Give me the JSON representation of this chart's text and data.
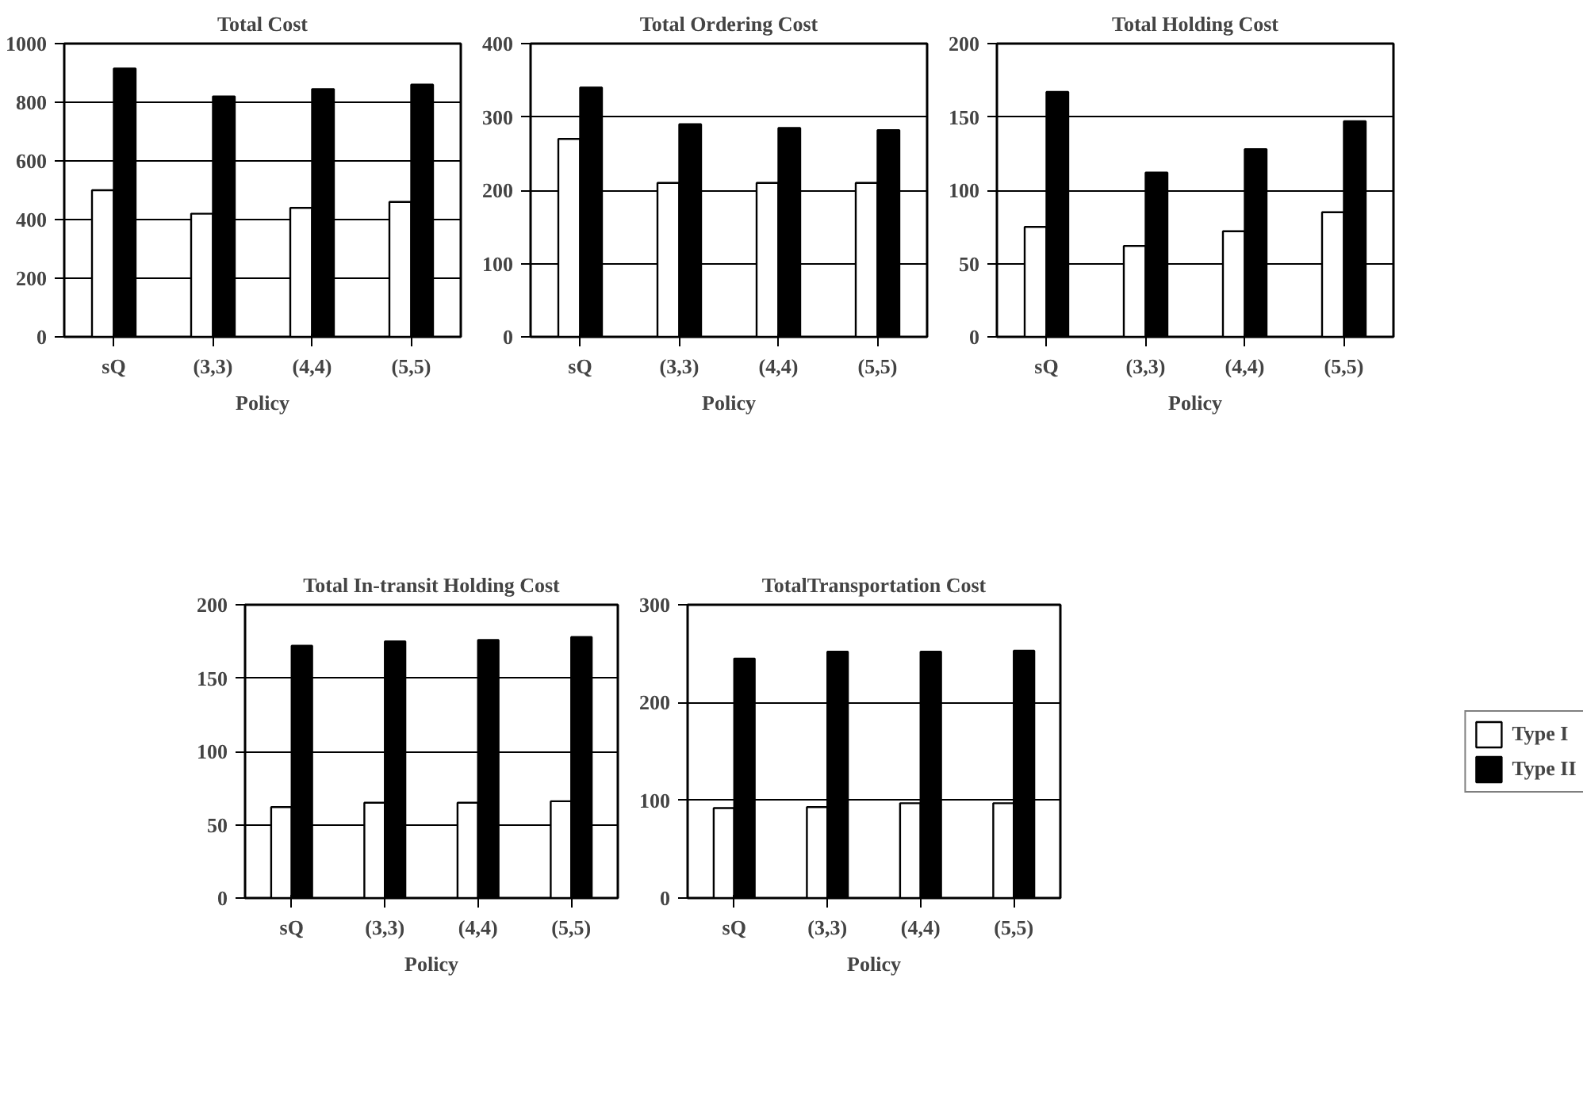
{
  "chart_data": [
    {
      "type": "bar",
      "title": "Total Cost",
      "xlabel": "Policy",
      "categories": [
        "sQ",
        "(3,3)",
        "(4,4)",
        "(5,5)"
      ],
      "series": [
        {
          "color": "#ffffff",
          "values": [
            500,
            420,
            440,
            460
          ]
        },
        {
          "color": "#000000",
          "values": [
            915,
            820,
            845,
            860
          ]
        }
      ],
      "ylim": [
        0,
        1000
      ],
      "yticks": [
        0,
        200,
        400,
        600,
        800,
        1000
      ],
      "grid": "y"
    },
    {
      "type": "bar",
      "title": "Total Ordering Cost",
      "xlabel": "Policy",
      "categories": [
        "sQ",
        "(3,3)",
        "(4,4)",
        "(5,5)"
      ],
      "series": [
        {
          "color": "#ffffff",
          "values": [
            270,
            210,
            210,
            210
          ]
        },
        {
          "color": "#000000",
          "values": [
            340,
            290,
            285,
            282
          ]
        }
      ],
      "ylim": [
        0,
        400
      ],
      "yticks": [
        0,
        100,
        200,
        300,
        400
      ],
      "grid": "y"
    },
    {
      "type": "bar",
      "title": "Total Holding Cost",
      "xlabel": "Policy",
      "categories": [
        "sQ",
        "(3,3)",
        "(4,4)",
        "(5,5)"
      ],
      "series": [
        {
          "color": "#ffffff",
          "values": [
            75,
            62,
            72,
            85
          ]
        },
        {
          "color": "#000000",
          "values": [
            167,
            112,
            128,
            147
          ]
        }
      ],
      "ylim": [
        0,
        200
      ],
      "yticks": [
        0,
        50,
        100,
        150,
        200
      ],
      "grid": "y"
    },
    {
      "type": "bar",
      "title": "Total In-transit Holding Cost",
      "xlabel": "Policy",
      "categories": [
        "sQ",
        "(3,3)",
        "(4,4)",
        "(5,5)"
      ],
      "series": [
        {
          "color": "#ffffff",
          "values": [
            62,
            65,
            65,
            66
          ]
        },
        {
          "color": "#000000",
          "values": [
            172,
            175,
            176,
            178
          ]
        }
      ],
      "ylim": [
        0,
        200
      ],
      "yticks": [
        0,
        50,
        100,
        150,
        200
      ],
      "grid": "y"
    },
    {
      "type": "bar",
      "title": "TotalTransportation Cost",
      "xlabel": "Policy",
      "categories": [
        "sQ",
        "(3,3)",
        "(4,4)",
        "(5,5)"
      ],
      "series": [
        {
          "name": "Type I",
          "color": "#ffffff",
          "values": [
            92,
            93,
            97,
            97
          ]
        },
        {
          "name": "Type II",
          "color": "#000000",
          "values": [
            245,
            252,
            252,
            253
          ]
        }
      ],
      "ylim": [
        0,
        300
      ],
      "yticks": [
        0,
        100,
        200,
        300
      ],
      "grid": "y",
      "legend": "right"
    }
  ]
}
